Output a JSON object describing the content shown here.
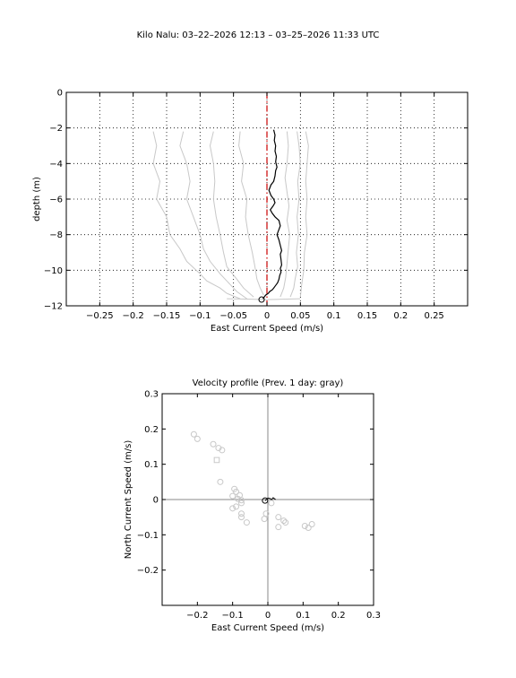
{
  "figure": {
    "title": "Kilo Nalu: 03–22–2026 12:13 – 03–25–2026 11:33 UTC"
  },
  "colors": {
    "current_profile": "#000000",
    "previous_profiles": "#c8c8c8",
    "zero_line": "#cc0000"
  },
  "chart_data": [
    {
      "type": "line",
      "title": "",
      "xlabel": "East Current Speed (m/s)",
      "ylabel": "depth (m)",
      "xlim": [
        -0.3,
        0.3
      ],
      "ylim": [
        -12,
        0
      ],
      "xticks": [
        -0.25,
        -0.2,
        -0.15,
        -0.1,
        -0.05,
        0,
        0.05,
        0.1,
        0.15,
        0.2,
        0.25
      ],
      "xtick_labels": [
        "−0.25",
        "−0.2",
        "−0.15",
        "−0.1",
        "−0.05",
        "0",
        "0.05",
        "0.1",
        "0.15",
        "0.2",
        "0.25"
      ],
      "yticks": [
        0,
        -2,
        -4,
        -6,
        -8,
        -10,
        -12
      ],
      "ytick_labels": [
        "0",
        "−2",
        "−4",
        "−6",
        "−8",
        "−10",
        "−12"
      ],
      "grid": true,
      "reference_line": {
        "x": 0,
        "style": "dash-dot"
      },
      "series": [
        {
          "role": "current",
          "x": [
            0.01,
            0.012,
            0.011,
            0.013,
            0.012,
            0.014,
            0.013,
            0.015,
            0.013,
            0.012,
            0.01,
            0.006,
            0.003,
            0.006,
            0.01,
            0.012,
            0.009,
            0.005,
            0.008,
            0.012,
            0.018,
            0.02,
            0.017,
            0.015,
            0.018,
            0.02,
            0.022,
            0.02,
            0.021,
            0.022,
            0.02,
            0.021,
            0.019,
            0.018,
            0.016,
            0.014,
            0.012,
            0.01,
            0.008,
            0.004,
            0.002,
            -0.002,
            -0.006
          ],
          "y": [
            -2.1,
            -2.4,
            -2.7,
            -3.0,
            -3.3,
            -3.6,
            -3.9,
            -4.2,
            -4.4,
            -4.7,
            -5.0,
            -5.2,
            -5.5,
            -5.8,
            -6.0,
            -6.2,
            -6.4,
            -6.6,
            -6.8,
            -7.0,
            -7.2,
            -7.5,
            -7.8,
            -8.0,
            -8.3,
            -8.6,
            -8.9,
            -9.1,
            -9.4,
            -9.7,
            -9.9,
            -10.1,
            -10.3,
            -10.5,
            -10.7,
            -10.8,
            -10.9,
            -11.0,
            -11.1,
            -11.2,
            -11.3,
            -11.4,
            -11.6
          ],
          "end_marker": {
            "x": -0.008,
            "y": -11.65,
            "shape": "circle"
          }
        },
        {
          "role": "previous",
          "x": [
            -0.17,
            -0.165,
            -0.17,
            -0.16,
            -0.165,
            -0.15,
            -0.145,
            -0.13,
            -0.12,
            -0.1,
            -0.09,
            -0.07,
            -0.06,
            -0.04
          ],
          "y": [
            -2.2,
            -3.0,
            -4.0,
            -5.0,
            -6.0,
            -7.0,
            -8.0,
            -8.8,
            -9.5,
            -10.2,
            -10.6,
            -11.0,
            -11.3,
            -11.6
          ]
        },
        {
          "role": "previous",
          "x": [
            -0.125,
            -0.13,
            -0.12,
            -0.115,
            -0.12,
            -0.11,
            -0.1,
            -0.095,
            -0.085,
            -0.07,
            -0.055,
            -0.045,
            -0.03
          ],
          "y": [
            -2.2,
            -3.0,
            -4.0,
            -5.0,
            -6.0,
            -7.0,
            -8.0,
            -8.8,
            -9.5,
            -10.2,
            -10.8,
            -11.2,
            -11.6
          ]
        },
        {
          "role": "previous",
          "x": [
            -0.08,
            -0.085,
            -0.08,
            -0.078,
            -0.08,
            -0.076,
            -0.07,
            -0.065,
            -0.06,
            -0.045,
            -0.035,
            -0.02
          ],
          "y": [
            -2.2,
            -3.0,
            -4.0,
            -5.0,
            -6.0,
            -7.0,
            -8.0,
            -9.0,
            -9.8,
            -10.5,
            -11.0,
            -11.5
          ]
        },
        {
          "role": "previous",
          "x": [
            -0.04,
            -0.042,
            -0.035,
            -0.038,
            -0.03,
            -0.032,
            -0.028,
            -0.022,
            -0.018,
            -0.015,
            -0.01,
            -0.005
          ],
          "y": [
            -2.2,
            -3.0,
            -4.0,
            -5.0,
            -6.0,
            -7.0,
            -8.0,
            -9.0,
            -9.8,
            -10.5,
            -11.0,
            -11.4
          ]
        },
        {
          "role": "previous",
          "x": [
            0.03,
            0.032,
            0.03,
            0.027,
            0.03,
            0.033,
            0.03,
            0.034,
            0.032,
            0.03,
            0.028,
            0.025,
            0.02
          ],
          "y": [
            -2.2,
            -3.0,
            -4.0,
            -4.8,
            -5.6,
            -6.4,
            -7.2,
            -8.0,
            -8.8,
            -9.6,
            -10.4,
            -11.0,
            -11.5
          ]
        },
        {
          "role": "previous",
          "x": [
            0.045,
            0.048,
            0.05,
            0.046,
            0.048,
            0.045,
            0.047,
            0.044,
            0.046,
            0.042,
            0.04,
            0.035
          ],
          "y": [
            -2.2,
            -3.0,
            -4.0,
            -5.0,
            -6.0,
            -7.0,
            -8.0,
            -9.0,
            -9.8,
            -10.5,
            -11.0,
            -11.5
          ]
        },
        {
          "role": "previous",
          "x": [
            0.058,
            0.062,
            0.06,
            0.058,
            0.06,
            0.058,
            0.06,
            0.056,
            0.055,
            0.052,
            0.05
          ],
          "y": [
            -2.2,
            -3.0,
            -4.0,
            -5.0,
            -6.0,
            -7.0,
            -8.0,
            -9.0,
            -10.0,
            -10.8,
            -11.5
          ]
        },
        {
          "role": "previous",
          "x": [
            -0.06,
            -0.03,
            0.0,
            0.03,
            0.05
          ],
          "y": [
            -11.6,
            -11.62,
            -11.65,
            -11.62,
            -11.6
          ]
        }
      ]
    },
    {
      "type": "scatter",
      "title": "Velocity profile (Prev. 1 day: gray)",
      "xlabel": "East Current Speed (m/s)",
      "ylabel": "North Current Speed (m/s)",
      "xlim": [
        -0.3,
        0.3
      ],
      "ylim": [
        -0.3,
        0.3
      ],
      "xticks": [
        -0.2,
        -0.1,
        0,
        0.1,
        0.2,
        0.3
      ],
      "xtick_labels": [
        "−0.2",
        "−0.1",
        "0",
        "0.1",
        "0.2",
        "0.3"
      ],
      "yticks": [
        0.3,
        0.2,
        0.1,
        0,
        -0.1,
        -0.2
      ],
      "ytick_labels": [
        "0.3",
        "0.2",
        "0.1",
        "0",
        "−0.1",
        "−0.2"
      ],
      "grid": false,
      "axis_lines": true,
      "series": [
        {
          "role": "previous",
          "marker": "circle",
          "points": [
            [
              -0.21,
              0.185
            ],
            [
              -0.2,
              0.172
            ],
            [
              -0.155,
              0.157
            ],
            [
              -0.14,
              0.146
            ],
            [
              -0.13,
              0.14
            ],
            [
              -0.135,
              0.05
            ],
            [
              -0.095,
              0.03
            ],
            [
              -0.09,
              0.022
            ],
            [
              -0.1,
              0.01
            ],
            [
              -0.08,
              0.012
            ],
            [
              -0.085,
              0.002
            ],
            [
              -0.075,
              -0.002
            ],
            [
              -0.09,
              -0.02
            ],
            [
              -0.1,
              -0.025
            ],
            [
              -0.075,
              -0.01
            ],
            [
              -0.075,
              -0.04
            ],
            [
              -0.075,
              -0.05
            ],
            [
              -0.06,
              -0.065
            ],
            [
              -0.005,
              -0.04
            ],
            [
              -0.01,
              -0.055
            ],
            [
              0.03,
              -0.05
            ],
            [
              0.045,
              -0.06
            ],
            [
              0.05,
              -0.065
            ],
            [
              0.03,
              -0.078
            ],
            [
              0.105,
              -0.075
            ],
            [
              0.115,
              -0.08
            ],
            [
              0.125,
              -0.07
            ],
            [
              0.01,
              -0.01
            ]
          ]
        },
        {
          "role": "previous",
          "marker": "square",
          "points": [
            [
              -0.145,
              0.112
            ]
          ]
        },
        {
          "role": "current",
          "marker": "line",
          "points": [
            [
              -0.008,
              -0.003
            ],
            [
              -0.004,
              0.0
            ],
            [
              0.0,
              0.004
            ],
            [
              0.006,
              0.003
            ],
            [
              0.011,
              0.0
            ],
            [
              0.015,
              0.005
            ],
            [
              0.019,
              0.002
            ],
            [
              0.022,
              0.0
            ]
          ],
          "end_marker": {
            "x": -0.008,
            "y": -0.003,
            "shape": "circle"
          }
        }
      ]
    }
  ]
}
